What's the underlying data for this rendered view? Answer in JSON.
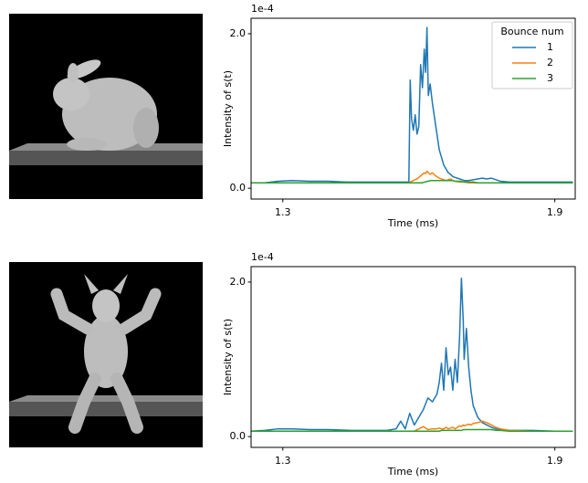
{
  "chart_data": [
    {
      "type": "line",
      "xlabel": "Time (ms)",
      "ylabel": "Intensity of s(t)",
      "y_offset_label": "1e-4",
      "xlim": [
        1.23,
        1.945
      ],
      "xticks": [
        1.3,
        1.9
      ],
      "ylim": [
        -0.14,
        2.2
      ],
      "yticks": [
        {
          "value": 0,
          "label": "0.0"
        },
        {
          "value": 2,
          "label": "2.0"
        }
      ],
      "legend": "upper right",
      "legend_title": "Bounce num",
      "x": [
        1.23,
        1.26,
        1.29,
        1.32,
        1.36,
        1.4,
        1.44,
        1.48,
        1.52,
        1.55,
        1.57,
        1.578,
        1.581,
        1.584,
        1.588,
        1.592,
        1.596,
        1.6,
        1.604,
        1.608,
        1.612,
        1.615,
        1.618,
        1.621,
        1.625,
        1.63,
        1.635,
        1.64,
        1.645,
        1.65,
        1.655,
        1.66,
        1.665,
        1.67,
        1.675,
        1.68,
        1.69,
        1.7,
        1.71,
        1.72,
        1.73,
        1.74,
        1.75,
        1.76,
        1.77,
        1.78,
        1.8,
        1.85,
        1.9,
        1.94
      ],
      "series": [
        {
          "name": "1",
          "color": "#1f77b4",
          "values": [
            0.07,
            0.07,
            0.09,
            0.1,
            0.09,
            0.09,
            0.08,
            0.08,
            0.08,
            0.08,
            0.08,
            0.08,
            1.4,
            0.9,
            0.75,
            0.95,
            0.7,
            0.8,
            1.6,
            1.3,
            1.8,
            1.5,
            2.08,
            1.2,
            1.35,
            1.1,
            0.9,
            0.7,
            0.5,
            0.4,
            0.3,
            0.25,
            0.2,
            0.18,
            0.15,
            0.14,
            0.12,
            0.1,
            0.1,
            0.11,
            0.12,
            0.13,
            0.12,
            0.13,
            0.11,
            0.09,
            0.08,
            0.08,
            0.08,
            0.08
          ]
        },
        {
          "name": "2",
          "color": "#ff7f0e",
          "values": [
            0.07,
            0.07,
            0.07,
            0.07,
            0.07,
            0.07,
            0.07,
            0.07,
            0.07,
            0.07,
            0.07,
            0.07,
            0.08,
            0.09,
            0.1,
            0.11,
            0.12,
            0.14,
            0.16,
            0.18,
            0.2,
            0.19,
            0.22,
            0.2,
            0.18,
            0.2,
            0.17,
            0.15,
            0.13,
            0.12,
            0.11,
            0.1,
            0.11,
            0.12,
            0.1,
            0.09,
            0.08,
            0.08,
            0.07,
            0.07,
            0.07,
            0.07,
            0.07,
            0.07,
            0.07,
            0.07,
            0.07,
            0.07,
            0.07,
            0.07
          ]
        },
        {
          "name": "3",
          "color": "#2ca02c",
          "values": [
            0.07,
            0.07,
            0.07,
            0.07,
            0.07,
            0.07,
            0.07,
            0.07,
            0.07,
            0.07,
            0.07,
            0.07,
            0.07,
            0.07,
            0.07,
            0.07,
            0.07,
            0.07,
            0.07,
            0.07,
            0.08,
            0.08,
            0.09,
            0.09,
            0.1,
            0.1,
            0.1,
            0.1,
            0.1,
            0.1,
            0.1,
            0.1,
            0.1,
            0.1,
            0.1,
            0.09,
            0.09,
            0.08,
            0.08,
            0.08,
            0.07,
            0.07,
            0.07,
            0.07,
            0.07,
            0.07,
            0.07,
            0.07,
            0.07,
            0.07
          ]
        }
      ]
    },
    {
      "type": "line",
      "xlabel": "Time (ms)",
      "ylabel": "Intensity of s(t)",
      "y_offset_label": "1e-4",
      "xlim": [
        1.23,
        1.945
      ],
      "xticks": [
        1.3,
        1.9
      ],
      "ylim": [
        -0.14,
        2.2
      ],
      "yticks": [
        {
          "value": 0,
          "label": "0.0"
        },
        {
          "value": 2,
          "label": "2.0"
        }
      ],
      "x": [
        1.23,
        1.26,
        1.29,
        1.32,
        1.36,
        1.4,
        1.45,
        1.5,
        1.53,
        1.55,
        1.56,
        1.57,
        1.58,
        1.59,
        1.6,
        1.61,
        1.62,
        1.63,
        1.64,
        1.645,
        1.65,
        1.655,
        1.66,
        1.665,
        1.67,
        1.675,
        1.68,
        1.685,
        1.69,
        1.694,
        1.698,
        1.7,
        1.705,
        1.71,
        1.715,
        1.72,
        1.73,
        1.74,
        1.75,
        1.76,
        1.77,
        1.78,
        1.8,
        1.85,
        1.9,
        1.94
      ],
      "series": [
        {
          "color": "#1f77b4",
          "values": [
            0.07,
            0.08,
            0.1,
            0.1,
            0.09,
            0.09,
            0.08,
            0.08,
            0.08,
            0.1,
            0.2,
            0.1,
            0.3,
            0.15,
            0.25,
            0.35,
            0.5,
            0.45,
            0.55,
            0.7,
            0.95,
            0.6,
            1.15,
            0.8,
            0.9,
            0.6,
            1.0,
            0.7,
            1.3,
            2.05,
            1.5,
            1.0,
            1.4,
            0.9,
            0.6,
            0.4,
            0.25,
            0.18,
            0.15,
            0.12,
            0.1,
            0.09,
            0.08,
            0.08,
            0.07,
            0.07
          ]
        },
        {
          "color": "#ff7f0e",
          "values": [
            0.07,
            0.07,
            0.07,
            0.07,
            0.07,
            0.07,
            0.07,
            0.07,
            0.07,
            0.07,
            0.07,
            0.07,
            0.07,
            0.07,
            0.1,
            0.13,
            0.09,
            0.1,
            0.1,
            0.11,
            0.1,
            0.1,
            0.12,
            0.1,
            0.11,
            0.12,
            0.1,
            0.12,
            0.14,
            0.13,
            0.15,
            0.14,
            0.15,
            0.16,
            0.15,
            0.17,
            0.18,
            0.2,
            0.18,
            0.15,
            0.12,
            0.1,
            0.08,
            0.07,
            0.07,
            0.07
          ]
        },
        {
          "color": "#2ca02c",
          "values": [
            0.07,
            0.07,
            0.07,
            0.07,
            0.07,
            0.07,
            0.07,
            0.07,
            0.07,
            0.07,
            0.07,
            0.07,
            0.07,
            0.07,
            0.07,
            0.07,
            0.07,
            0.07,
            0.07,
            0.07,
            0.08,
            0.08,
            0.08,
            0.08,
            0.08,
            0.08,
            0.08,
            0.08,
            0.08,
            0.08,
            0.09,
            0.09,
            0.09,
            0.09,
            0.09,
            0.09,
            0.09,
            0.09,
            0.09,
            0.09,
            0.08,
            0.08,
            0.07,
            0.07,
            0.07,
            0.07
          ]
        }
      ]
    }
  ]
}
